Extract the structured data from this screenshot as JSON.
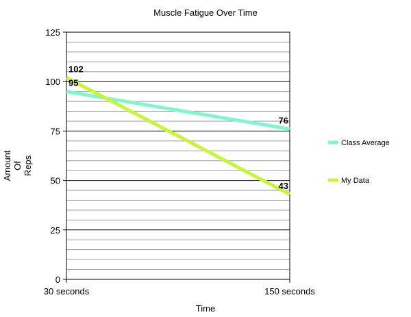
{
  "chart_data": {
    "type": "line",
    "title": "Muscle Fatigue Over Time",
    "xlabel": "Time",
    "ylabel_lines": [
      "Amount",
      "Of",
      "Reps"
    ],
    "categories": [
      "30 seconds",
      "150 seconds"
    ],
    "ylim": [
      0,
      125
    ],
    "y_major_ticks": [
      0,
      25,
      50,
      75,
      100,
      125
    ],
    "y_minor_step": 5,
    "legend_position": "right",
    "series": [
      {
        "name": "Class Average",
        "values": [
          95,
          76
        ],
        "color": "#7ff5d0"
      },
      {
        "name": "My Data",
        "values": [
          102,
          43
        ],
        "color": "#c8f53c"
      }
    ]
  }
}
